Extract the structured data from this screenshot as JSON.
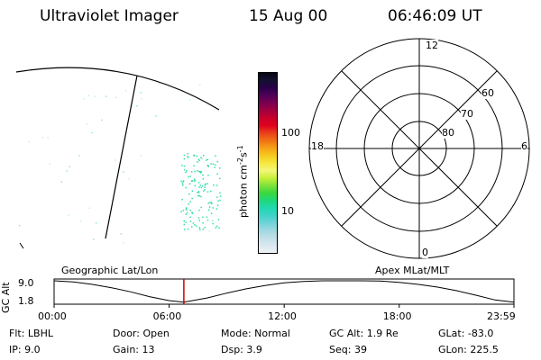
{
  "header": {
    "instrument": "Ultraviolet Imager",
    "date": "15 Aug 00",
    "time": "06:46:09 UT"
  },
  "colorbar": {
    "label": "photon cm",
    "label_exp1": "-2",
    "label_mid": "s",
    "label_exp2": "-1",
    "ticks": [
      "100",
      "10"
    ],
    "colors": [
      "#eef2f4",
      "#d9e8ee",
      "#c2dfe8",
      "#9fd8e0",
      "#6fd3d8",
      "#3fd3c8",
      "#21d9b0",
      "#20d878",
      "#3ad83e",
      "#7fe23a",
      "#c8f03a",
      "#f3f77a",
      "#f6e83c",
      "#f6c820",
      "#f6a016",
      "#f07014",
      "#e8401a",
      "#e0001e",
      "#c8002a",
      "#a00040",
      "#7a0050",
      "#4e0058",
      "#2a0048",
      "#141030",
      "#060612"
    ]
  },
  "polar": {
    "mlt_labels": {
      "top": "12",
      "bottom": "0",
      "left": "18",
      "right": "6"
    },
    "lat_labels": [
      "60",
      "70",
      "80"
    ]
  },
  "timeline": {
    "left_caption": "Geographic Lat/Lon",
    "right_caption": "Apex MLat/MLT",
    "y_axis_label": "GC Alt",
    "y_ticks": [
      "9.0",
      "1.8"
    ],
    "x_ticks": [
      "00:00",
      "06:00",
      "12:00",
      "18:00",
      "23:59"
    ],
    "chart_data": {
      "type": "line",
      "x": [
        "00:00",
        "01:00",
        "02:00",
        "03:00",
        "04:00",
        "05:00",
        "06:00",
        "06:46",
        "08:00",
        "09:00",
        "10:00",
        "11:00",
        "12:00",
        "13:00",
        "14:00",
        "15:00",
        "16:00",
        "17:00",
        "18:00",
        "19:00",
        "20:00",
        "21:00",
        "22:00",
        "23:00",
        "23:59"
      ],
      "series": [
        {
          "values": [
            9.0,
            8.6,
            7.8,
            6.7,
            5.3,
            3.7,
            2.4,
            1.9,
            3.3,
            4.9,
            6.3,
            7.4,
            8.3,
            8.8,
            9.0,
            9.0,
            9.0,
            8.9,
            8.5,
            7.8,
            6.9,
            5.7,
            4.2,
            2.6,
            1.9
          ]
        }
      ],
      "marker_time": "06:46",
      "ylim": [
        1.8,
        9.0
      ],
      "xlim": [
        "00:00",
        "23:59"
      ]
    }
  },
  "info": {
    "row1": [
      {
        "label": "Flt:",
        "value": "LBHL"
      },
      {
        "label": "Door:",
        "value": "Open"
      },
      {
        "label": "Mode:",
        "value": "Normal"
      },
      {
        "label": "GC Alt:",
        "value": "1.9 Re"
      },
      {
        "label": "GLat:",
        "value": "-83.0"
      }
    ],
    "row2": [
      {
        "label": "IP:",
        "value": "9.0"
      },
      {
        "label": "Gain:",
        "value": "13"
      },
      {
        "label": "Dsp:",
        "value": "3.9"
      },
      {
        "label": "Seq:",
        "value": "39"
      },
      {
        "label": "GLon:",
        "value": "225.5"
      }
    ]
  },
  "colors": {
    "line": "#000000",
    "marker": "#cc0000",
    "speckle": "#33ddaa"
  }
}
